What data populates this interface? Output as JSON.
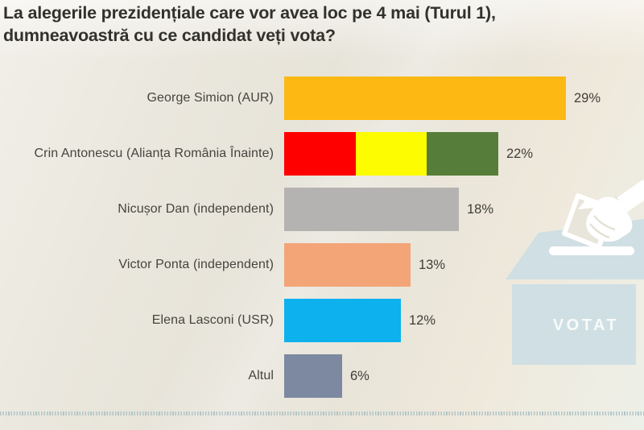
{
  "title": "La alegerile prezidențiale care vor avea loc pe 4 mai (Turul 1), dumneavoastră cu ce candidat veți vota?",
  "chart_data": {
    "type": "bar",
    "orientation": "horizontal",
    "title": "La alegerile prezidențiale care vor avea loc pe 4 mai (Turul 1), dumneavoastră cu ce candidat veți vota?",
    "categories": [
      "George Simion (AUR)",
      "Crin Antonescu (Alianța România Înainte)",
      "Nicușor Dan (independent)",
      "Victor Ponta (independent)",
      "Elena Lasconi (USR)",
      "Altul"
    ],
    "values": [
      29,
      22,
      18,
      13,
      12,
      6
    ],
    "value_labels": [
      "29%",
      "22%",
      "18%",
      "13%",
      "12%",
      "6%"
    ],
    "bar_colors": [
      [
        "#fdb813"
      ],
      [
        "#fe0000",
        "#fdfc00",
        "#567d39"
      ],
      [
        "#b5b3b2"
      ],
      [
        "#f3a577"
      ],
      [
        "#0db1ee"
      ],
      [
        "#7d89a0"
      ]
    ],
    "unit": "%",
    "xlim": [
      0,
      30
    ],
    "grid": false,
    "legend": "none",
    "label_color": "#46443e",
    "value_color": "#3e3d37"
  },
  "illustration": {
    "votat_label": "VOTAT",
    "box_color": "#cfdfe4",
    "slot_color": "#ffffff",
    "hand_color": "#ffffff",
    "envelope_fill": "#e8e5da",
    "text_color": "#f8fbf9"
  },
  "decoration": {
    "dotted_line_color": "#a7bfc3",
    "background_beige": "#e7e4da",
    "title_color": "#32312b"
  }
}
